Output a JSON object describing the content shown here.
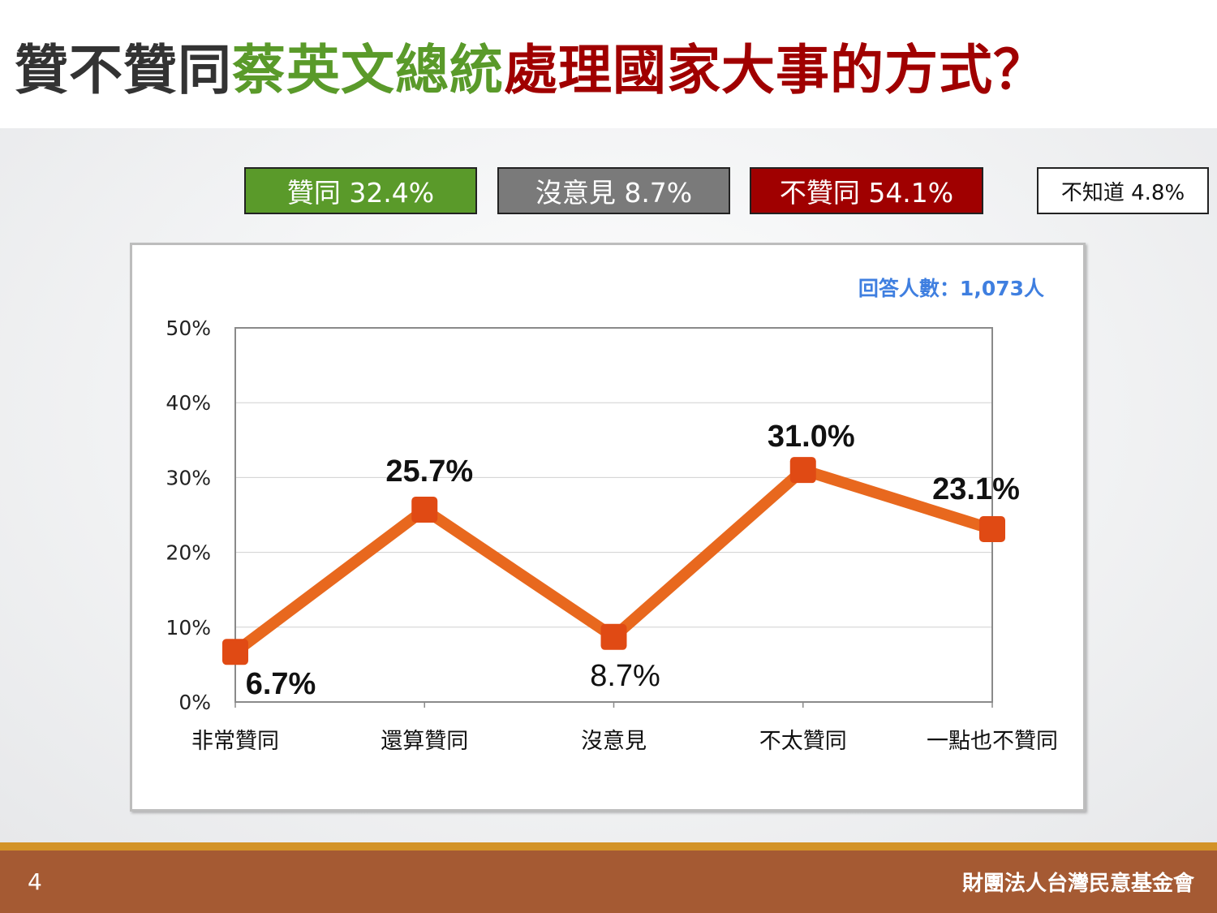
{
  "title": {
    "part1": "贊不贊同",
    "part2": "蔡英文總統",
    "part3": "處理國家大事的方式？"
  },
  "summary": [
    {
      "label": "贊同 32.4%",
      "color": "#5a9a2a"
    },
    {
      "label": "沒意見 8.7%",
      "color": "#7a7a7a"
    },
    {
      "label": "不贊同 54.1%",
      "color": "#a00000"
    },
    {
      "label": "不知道 4.8%",
      "color": "#ffffff"
    }
  ],
  "respondents": "回答人數：1,073人",
  "chart_data": {
    "type": "line",
    "categories": [
      "非常贊同",
      "還算贊同",
      "沒意見",
      "不太贊同",
      "一點也不贊同"
    ],
    "values": [
      6.7,
      25.7,
      8.7,
      31.0,
      23.1
    ],
    "data_labels": [
      "6.7%",
      "25.7%",
      "8.7%",
      "31.0%",
      "23.1%"
    ],
    "ylim": [
      0,
      50
    ],
    "yticks": [
      "0%",
      "10%",
      "20%",
      "30%",
      "40%",
      "50%"
    ],
    "line_color": "#e8681e",
    "marker_color": "#e04a14",
    "grid": true
  },
  "footer": {
    "page": "4",
    "org": "財團法人台灣民意基金會"
  }
}
